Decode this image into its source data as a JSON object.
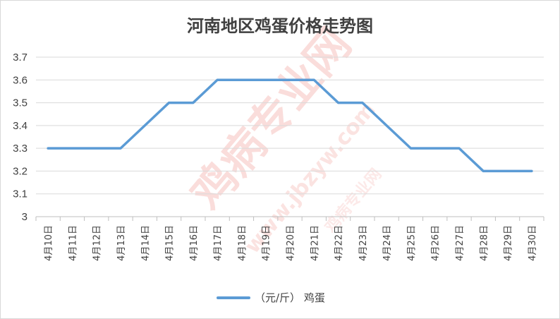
{
  "chart_data": {
    "type": "line",
    "title": "河南地区鸡蛋价格走势图",
    "categories": [
      "4月10日",
      "4月11日",
      "4月12日",
      "4月13日",
      "4月14日",
      "4月15日",
      "4月16日",
      "4月17日",
      "4月18日",
      "4月19日",
      "4月20日",
      "4月21日",
      "4月22日",
      "4月23日",
      "4月24日",
      "4月25日",
      "4月26日",
      "4月27日",
      "4月28日",
      "4月29日",
      "4月30日"
    ],
    "series": [
      {
        "name": "（元/斤） 鸡蛋",
        "color": "#5b9bd5",
        "values": [
          3.3,
          3.3,
          3.3,
          3.3,
          3.4,
          3.5,
          3.5,
          3.6,
          3.6,
          3.6,
          3.6,
          3.6,
          3.5,
          3.5,
          3.4,
          3.3,
          3.3,
          3.3,
          3.2,
          3.2,
          3.2
        ]
      }
    ],
    "yticks": [
      "3",
      "3.1",
      "3.2",
      "3.3",
      "3.4",
      "3.5",
      "3.6",
      "3.7"
    ],
    "ylim": [
      3,
      3.7
    ],
    "grid": true,
    "legend_position": "bottom",
    "xlabel": "",
    "ylabel": ""
  },
  "watermark": {
    "text_main": "鸡病专业网",
    "text_url": "www.jbzyw.com",
    "text_small": "鸡病专业网",
    "color": "#e8665a"
  }
}
